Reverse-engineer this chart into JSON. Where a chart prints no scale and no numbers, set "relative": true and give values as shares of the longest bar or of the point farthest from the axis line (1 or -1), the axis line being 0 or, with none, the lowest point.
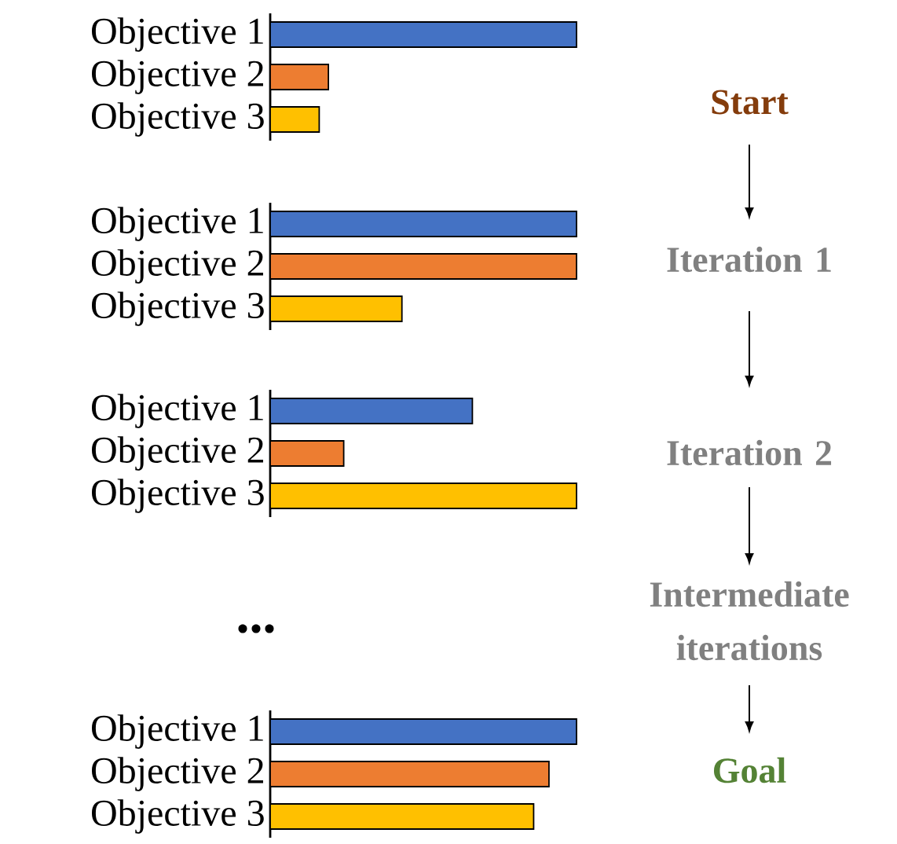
{
  "chart_data": [
    {
      "type": "bar",
      "orientation": "horizontal",
      "relative": true,
      "categories": [
        "Objective 1",
        "Objective 2",
        "Objective 3"
      ],
      "values": [
        1,
        0.19,
        0.16
      ],
      "colors": [
        "#4472c4",
        "#ed7d31",
        "#ffc000"
      ]
    },
    {
      "type": "bar",
      "orientation": "horizontal",
      "relative": true,
      "categories": [
        "Objective 1",
        "Objective 2",
        "Objective 3"
      ],
      "values": [
        1,
        1,
        0.43
      ],
      "colors": [
        "#4472c4",
        "#ed7d31",
        "#ffc000"
      ]
    },
    {
      "type": "bar",
      "orientation": "horizontal",
      "relative": true,
      "categories": [
        "Objective 1",
        "Objective 2",
        "Objective 3"
      ],
      "values": [
        0.66,
        0.24,
        1
      ],
      "colors": [
        "#4472c4",
        "#ed7d31",
        "#ffc000"
      ]
    },
    {
      "type": "bar",
      "orientation": "horizontal",
      "relative": true,
      "categories": [
        "Objective 1",
        "Objective 2",
        "Objective 3"
      ],
      "values": [
        1,
        0.91,
        0.86
      ],
      "colors": [
        "#4472c4",
        "#ed7d31",
        "#ffc000"
      ]
    },
    {
      "type": "other",
      "annotations": [
        "Start",
        "Iteration 1",
        "Iteration 2",
        "Intermediate iterations",
        "Goal",
        "..."
      ],
      "colors": [
        "#843c0c",
        "#808080",
        "#808080",
        "#808080",
        "#548235",
        "#000000"
      ]
    }
  ]
}
